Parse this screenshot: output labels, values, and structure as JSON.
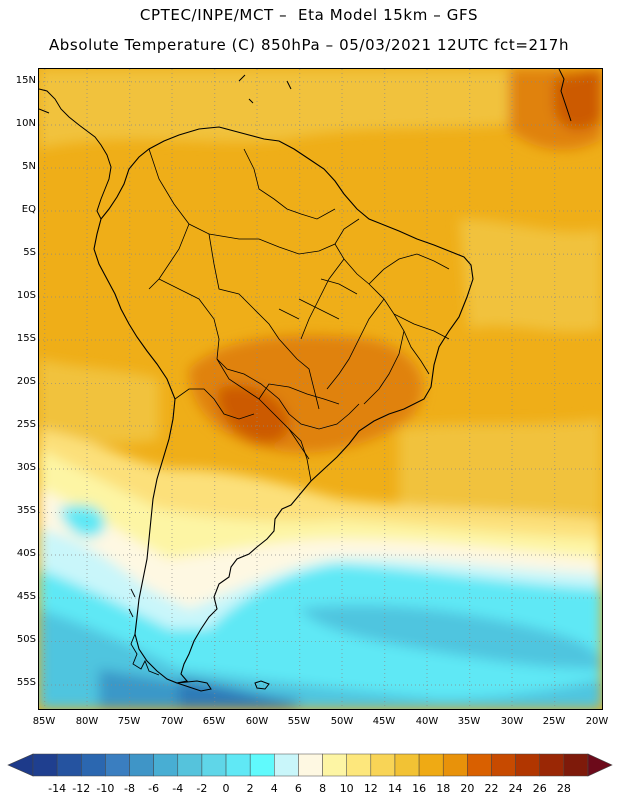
{
  "header": {
    "line1": "CPTEC/INPE/MCT –  Eta Model 15km – GFS",
    "line2": "Absolute Temperature (C) 850hPa – 05/03/2021 12UTC fct=217h"
  },
  "axes": {
    "y_labels": [
      "15N",
      "10N",
      "5N",
      "EQ",
      "5S",
      "10S",
      "15S",
      "20S",
      "25S",
      "30S",
      "35S",
      "40S",
      "45S",
      "50S",
      "55S"
    ],
    "x_labels": [
      "85W",
      "80W",
      "75W",
      "70W",
      "65W",
      "60W",
      "55W",
      "50W",
      "45W",
      "40W",
      "35W",
      "30W",
      "25W",
      "20W"
    ]
  },
  "colorbar": {
    "labels": [
      "-14",
      "-12",
      "-10",
      "-8",
      "-6",
      "-4",
      "-2",
      "0",
      "2",
      "4",
      "6",
      "8",
      "10",
      "12",
      "14",
      "16",
      "18",
      "20",
      "22",
      "24",
      "26",
      "28"
    ],
    "colors": [
      "#1f3f8f",
      "#2553a0",
      "#2b67b0",
      "#3a7ec0",
      "#3f95c7",
      "#48aed3",
      "#55c3dc",
      "#5fd6e8",
      "#60e8f5",
      "#60fafc",
      "#c9f6fa",
      "#fef8e2",
      "#fdf5a4",
      "#fde77c",
      "#f8d456",
      "#f2c234",
      "#efaa14",
      "#e8920a",
      "#d96000",
      "#c74a00",
      "#b13600",
      "#9a2705",
      "#7e1a0a"
    ],
    "low_color": "#1d3a8a",
    "high_color": "#6c0a1a"
  },
  "map": {
    "colors": {
      "warm_base": "#efae18",
      "warm_light": "#f1c23c",
      "hot": "#e0820b",
      "hottest": "#cc5a00",
      "yellow": "#fce07a",
      "pale_yellow": "#fdf5a4",
      "cream": "#fef8e2",
      "pale_cyan": "#c9f6fa",
      "cyan": "#5ee8f5",
      "light_blue": "#4fc5df",
      "mid_blue": "#3a98c8",
      "deep_blue": "#2f7ab8"
    }
  }
}
